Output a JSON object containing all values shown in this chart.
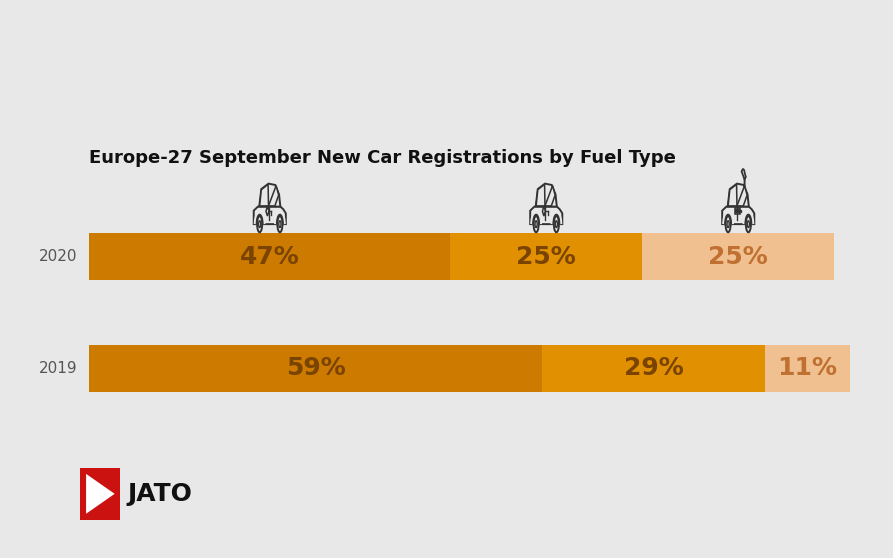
{
  "title": "Europe-27 September New Car Registrations by Fuel Type",
  "title_fontsize": 13.0,
  "title_fontweight": "bold",
  "background_color": "#e8e8e8",
  "years": [
    "2020",
    "2019"
  ],
  "values_2020": [
    47,
    25,
    25
  ],
  "values_2019": [
    59,
    29,
    11
  ],
  "color_dark": "#cc7a00",
  "color_mid": "#e09000",
  "color_light": "#f0c090",
  "label_color_dark": "#b05500",
  "label_color_light": "#c07030",
  "year_label_color": "#555555",
  "year_fontsize": 11,
  "value_fontsize": 18,
  "car_line_color": "#333333",
  "jato_red": "#cc1111",
  "jato_fontsize": 18,
  "figsize": [
    8.93,
    5.58
  ],
  "dpi": 100
}
